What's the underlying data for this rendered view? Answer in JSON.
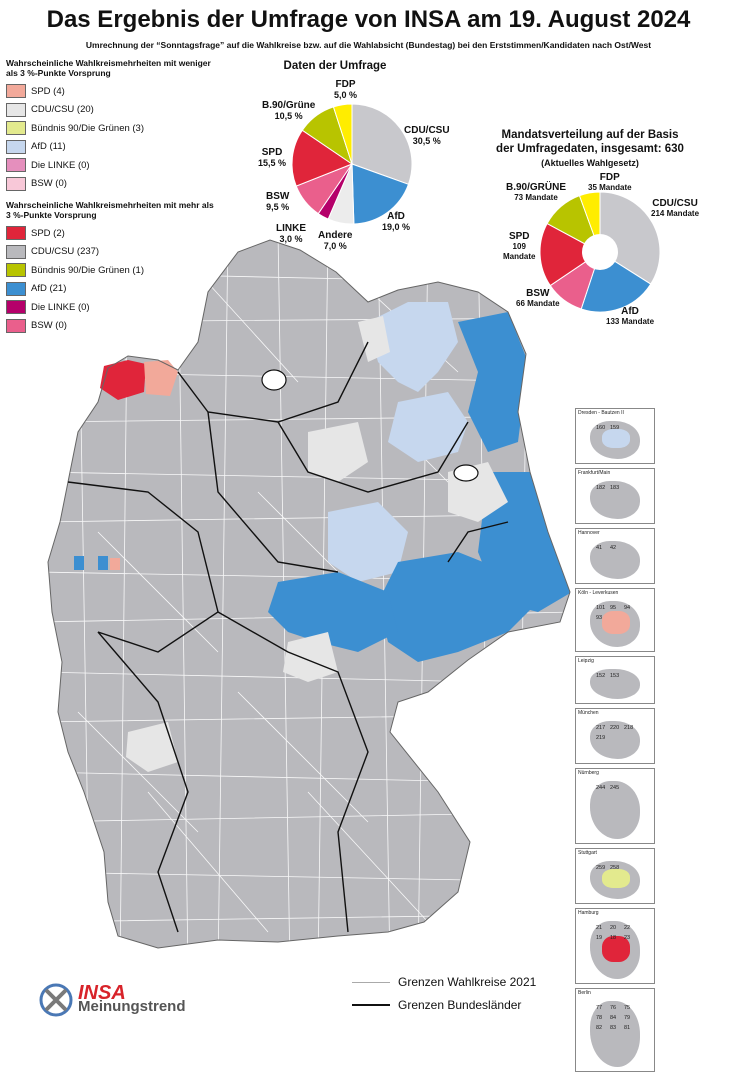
{
  "title": "Das Ergebnis der Umfrage von INSA am 19. August 2024",
  "subtitle": "Umrechnung der “Sonntagsfrage” auf die Wahlkreise bzw. auf die Wahlabsicht (Bundestag) bei den Erststimmen/Kandidaten nach Ost/West",
  "legend_weak": {
    "heading": "Wahrscheinliche Wahlkreismehrheiten mit weniger als 3 %-Punkte Vorsprung",
    "items": [
      {
        "label": "SPD (4)",
        "color": "#f2a99a"
      },
      {
        "label": "CDU/CSU (20)",
        "color": "#e6e6e6"
      },
      {
        "label": "Bündnis 90/Die Grünen (3)",
        "color": "#e3ea8e"
      },
      {
        "label": "AfD (11)",
        "color": "#c6d7ee"
      },
      {
        "label": "Die LINKE (0)",
        "color": "#e58fbd"
      },
      {
        "label": "BSW (0)",
        "color": "#f8c8d8"
      }
    ]
  },
  "legend_strong": {
    "heading": "Wahrscheinliche Wahlkreismehrheiten mit mehr als 3 %-Punkte Vorsprung",
    "items": [
      {
        "label": "SPD (2)",
        "color": "#e0253a"
      },
      {
        "label": "CDU/CSU (237)",
        "color": "#b9b9bd"
      },
      {
        "label": "Bündnis 90/Die Grünen (1)",
        "color": "#b8c400"
      },
      {
        "label": "AfD (21)",
        "color": "#3c8fd1"
      },
      {
        "label": "Die LINKE (0)",
        "color": "#b5006a"
      },
      {
        "label": "BSW (0)",
        "color": "#ea5f8c"
      }
    ]
  },
  "poll_chart": {
    "title": "Daten der Umfrage",
    "labels": {
      "cdu_name": "CDU/CSU",
      "cdu_val": "30,5 %",
      "afd_name": "AfD",
      "afd_val": "19,0 %",
      "andere_name": "Andere",
      "andere_val": "7,0 %",
      "linke_name": "LINKE",
      "linke_val": "3,0 %",
      "bsw_name": "BSW",
      "bsw_val": "9,5 %",
      "spd_name": "SPD",
      "spd_val": "15,5 %",
      "gruene_name": "B.90/Grüne",
      "gruene_val": "10,5 %",
      "fdp_name": "FDP",
      "fdp_val": "5,0 %"
    }
  },
  "seat_chart": {
    "title_line1": "Mandatsverteilung auf der Basis",
    "title_line2": "der Umfragedaten, insgesamt: 630",
    "title_line3": "(Aktuelles Wahlgesetz)",
    "labels": {
      "fdp_name": "FDP",
      "fdp_val": "35 Mandate",
      "cdu_name": "CDU/CSU",
      "cdu_val": "214 Mandate",
      "afd_name": "AfD",
      "afd_val": "133 Mandate",
      "bsw_name": "BSW",
      "bsw_val": "66 Mandate",
      "spd_name": "SPD",
      "spd_val_num": "109",
      "spd_val_word": "Mandate",
      "gruene_name": "B.90/GRÜNE",
      "gruene_val": "73 Mandate"
    }
  },
  "chart_data": [
    {
      "type": "pie",
      "title": "Daten der Umfrage",
      "categories": [
        "CDU/CSU",
        "AfD",
        "Andere",
        "LINKE",
        "BSW",
        "SPD",
        "B.90/Grüne",
        "FDP"
      ],
      "values": [
        30.5,
        19.0,
        7.0,
        3.0,
        9.5,
        15.5,
        10.5,
        5.0
      ],
      "colors": [
        "#c8c8cc",
        "#3c8fd1",
        "#ececec",
        "#b5006a",
        "#ea5f8c",
        "#e0253a",
        "#b8c400",
        "#ffed00"
      ]
    },
    {
      "type": "pie",
      "title": "Mandatsverteilung auf der Basis der Umfragedaten, insgesamt: 630",
      "categories": [
        "CDU/CSU",
        "AfD",
        "BSW",
        "SPD",
        "B.90/GRÜNE",
        "FDP"
      ],
      "values": [
        214,
        133,
        66,
        109,
        73,
        35
      ],
      "colors": [
        "#c8c8cc",
        "#3c8fd1",
        "#ea5f8c",
        "#e0253a",
        "#b8c400",
        "#ffed00"
      ]
    }
  ],
  "insets": [
    {
      "name": "Dresden - Bautzen II",
      "numbers": [
        "160",
        "159"
      ]
    },
    {
      "name": "Frankfurt/Main",
      "numbers": [
        "182",
        "183"
      ]
    },
    {
      "name": "Hannover",
      "numbers": [
        "41",
        "42"
      ]
    },
    {
      "name": "Köln - Leverkusen",
      "numbers": [
        "101",
        "95",
        "94",
        "93"
      ]
    },
    {
      "name": "Leipzig",
      "numbers": [
        "152",
        "153"
      ]
    },
    {
      "name": "München",
      "numbers": [
        "217",
        "220",
        "218",
        "219"
      ]
    },
    {
      "name": "Nürnberg",
      "numbers": [
        "244",
        "245"
      ]
    },
    {
      "name": "Stuttgart",
      "numbers": [
        "259",
        "258"
      ]
    },
    {
      "name": "Hamburg",
      "numbers": [
        "21",
        "20",
        "22",
        "19",
        "18",
        "23"
      ]
    },
    {
      "name": "Berlin",
      "numbers": [
        "77",
        "76",
        "75",
        "78",
        "84",
        "79",
        "82",
        "83",
        "81"
      ]
    }
  ],
  "map_legend": {
    "wahlkreise": "Grenzen Wahlkreise 2021",
    "bundeslaender": "Grenzen Bundesländer"
  },
  "logo": {
    "brand": "INSA",
    "tagline": "Meinungstrend"
  }
}
